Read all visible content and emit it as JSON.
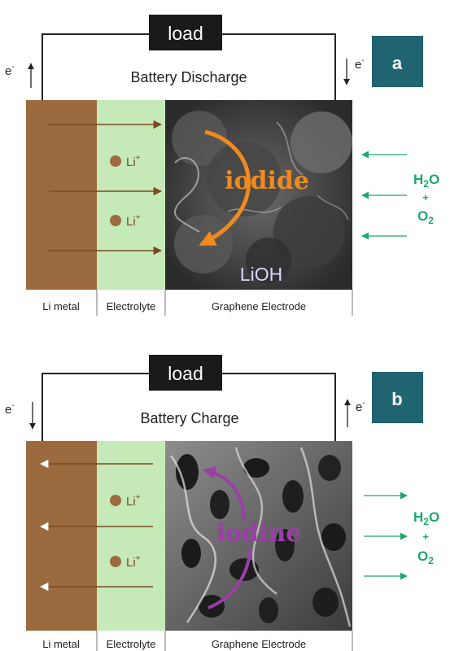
{
  "panel_a": {
    "tag": "a",
    "load": "load",
    "electron_left": "e",
    "electron_right": "e",
    "electron_sup": "-",
    "mode": "Battery Discharge",
    "ion_1": "Li",
    "ion_2": "Li",
    "ion_sup": "+",
    "species": "iodide",
    "product": "LiOH",
    "gas_water": "H",
    "gas_water_sub": "2",
    "gas_water_tail": "O",
    "gas_plus": "+",
    "gas_oxygen": "O",
    "gas_oxygen_sub": "2",
    "label_li_metal": "Li metal",
    "label_electrolyte": "Electrolyte",
    "label_electrode": "Graphene Electrode"
  },
  "panel_b": {
    "tag": "b",
    "load": "load",
    "electron_left": "e",
    "electron_right": "e",
    "electron_sup": "-",
    "mode": "Battery Charge",
    "ion_1": "Li",
    "ion_2": "Li",
    "ion_sup": "+",
    "species": "iodine",
    "gas_water": "H",
    "gas_water_sub": "2",
    "gas_water_tail": "O",
    "gas_plus": "+",
    "gas_oxygen": "O",
    "gas_oxygen_sub": "2",
    "label_li_metal": "Li metal",
    "label_electrolyte": "Electrolyte",
    "label_electrode": "Graphene Electrode"
  },
  "colors": {
    "li_metal": "#9c6a3f",
    "electrolyte": "#c6e9b8",
    "tag_bg": "#1f6470",
    "iodide": "#f08a1e",
    "iodine": "#9b3fa6",
    "gas_green": "#1aa86a",
    "lioh": "#3a3f9a"
  }
}
